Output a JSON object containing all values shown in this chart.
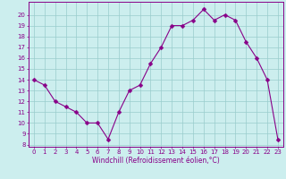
{
  "x": [
    0,
    1,
    2,
    3,
    4,
    5,
    6,
    7,
    8,
    9,
    10,
    11,
    12,
    13,
    14,
    15,
    16,
    17,
    18,
    19,
    20,
    21,
    22,
    23
  ],
  "y": [
    14,
    13.5,
    12,
    11.5,
    11,
    10,
    10,
    8.5,
    11,
    13,
    13.5,
    15.5,
    17,
    19,
    19,
    19.5,
    20.5,
    19.5,
    20,
    19.5,
    17.5,
    16,
    14,
    8.5
  ],
  "line_color": "#880088",
  "marker_color": "#880088",
  "bg_color": "#cceeee",
  "grid_color": "#99cccc",
  "xlabel": "Windchill (Refroidissement éolien,°C)",
  "ylabel_ticks": [
    8,
    9,
    10,
    11,
    12,
    13,
    14,
    15,
    16,
    17,
    18,
    19,
    20
  ],
  "ylim": [
    7.8,
    21.2
  ],
  "xlim": [
    -0.5,
    23.5
  ],
  "xticks": [
    0,
    1,
    2,
    3,
    4,
    5,
    6,
    7,
    8,
    9,
    10,
    11,
    12,
    13,
    14,
    15,
    16,
    17,
    18,
    19,
    20,
    21,
    22,
    23
  ],
  "axis_label_color": "#880088",
  "tick_color": "#880088",
  "spine_color": "#880088",
  "marker_size": 2.5,
  "line_width": 0.8,
  "tick_fontsize": 5.0,
  "xlabel_fontsize": 5.5
}
